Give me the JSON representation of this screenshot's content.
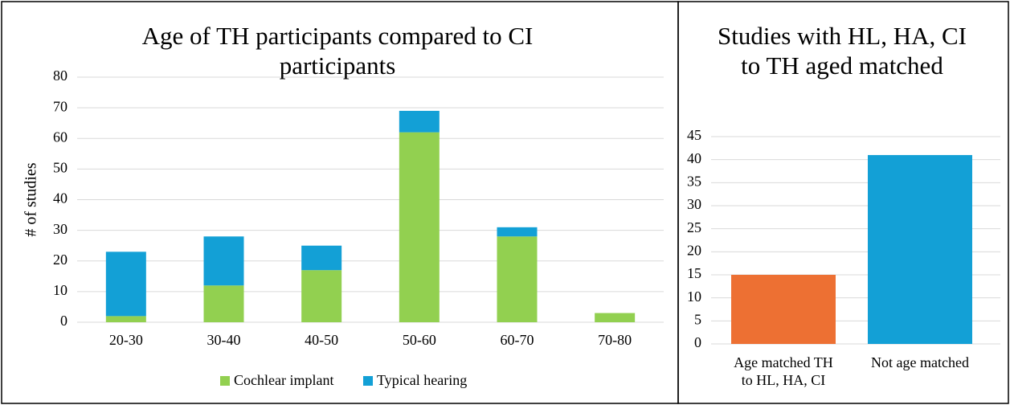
{
  "chart_data": [
    {
      "type": "stacked_bar",
      "title": "Age of TH participants compared to CI participants",
      "ylabel": "# of studies",
      "categories": [
        "20-30",
        "30-40",
        "40-50",
        "50-60",
        "60-70",
        "70-80"
      ],
      "series": [
        {
          "name": "Cochlear implant",
          "color": "#92d050",
          "values": [
            2,
            12,
            17,
            62,
            28,
            3
          ]
        },
        {
          "name": "Typical hearing",
          "color": "#13a0d6",
          "values": [
            21,
            16,
            8,
            7,
            3,
            0
          ]
        }
      ],
      "ylim": [
        0,
        80
      ],
      "yticks": [
        0,
        10,
        20,
        30,
        40,
        50,
        60,
        70,
        80
      ],
      "grid": true,
      "legend": "bottom"
    },
    {
      "type": "bar",
      "title": "Studies with HL, HA, CI to TH aged matched",
      "categories": [
        "Age matched TH to HL, HA, CI",
        "Not age matched"
      ],
      "values": [
        15,
        41
      ],
      "colors": [
        "#ed7033",
        "#13a0d6"
      ],
      "ylim": [
        0,
        45
      ],
      "yticks": [
        0,
        5,
        10,
        15,
        20,
        25,
        30,
        35,
        40,
        45
      ],
      "grid": true
    }
  ]
}
